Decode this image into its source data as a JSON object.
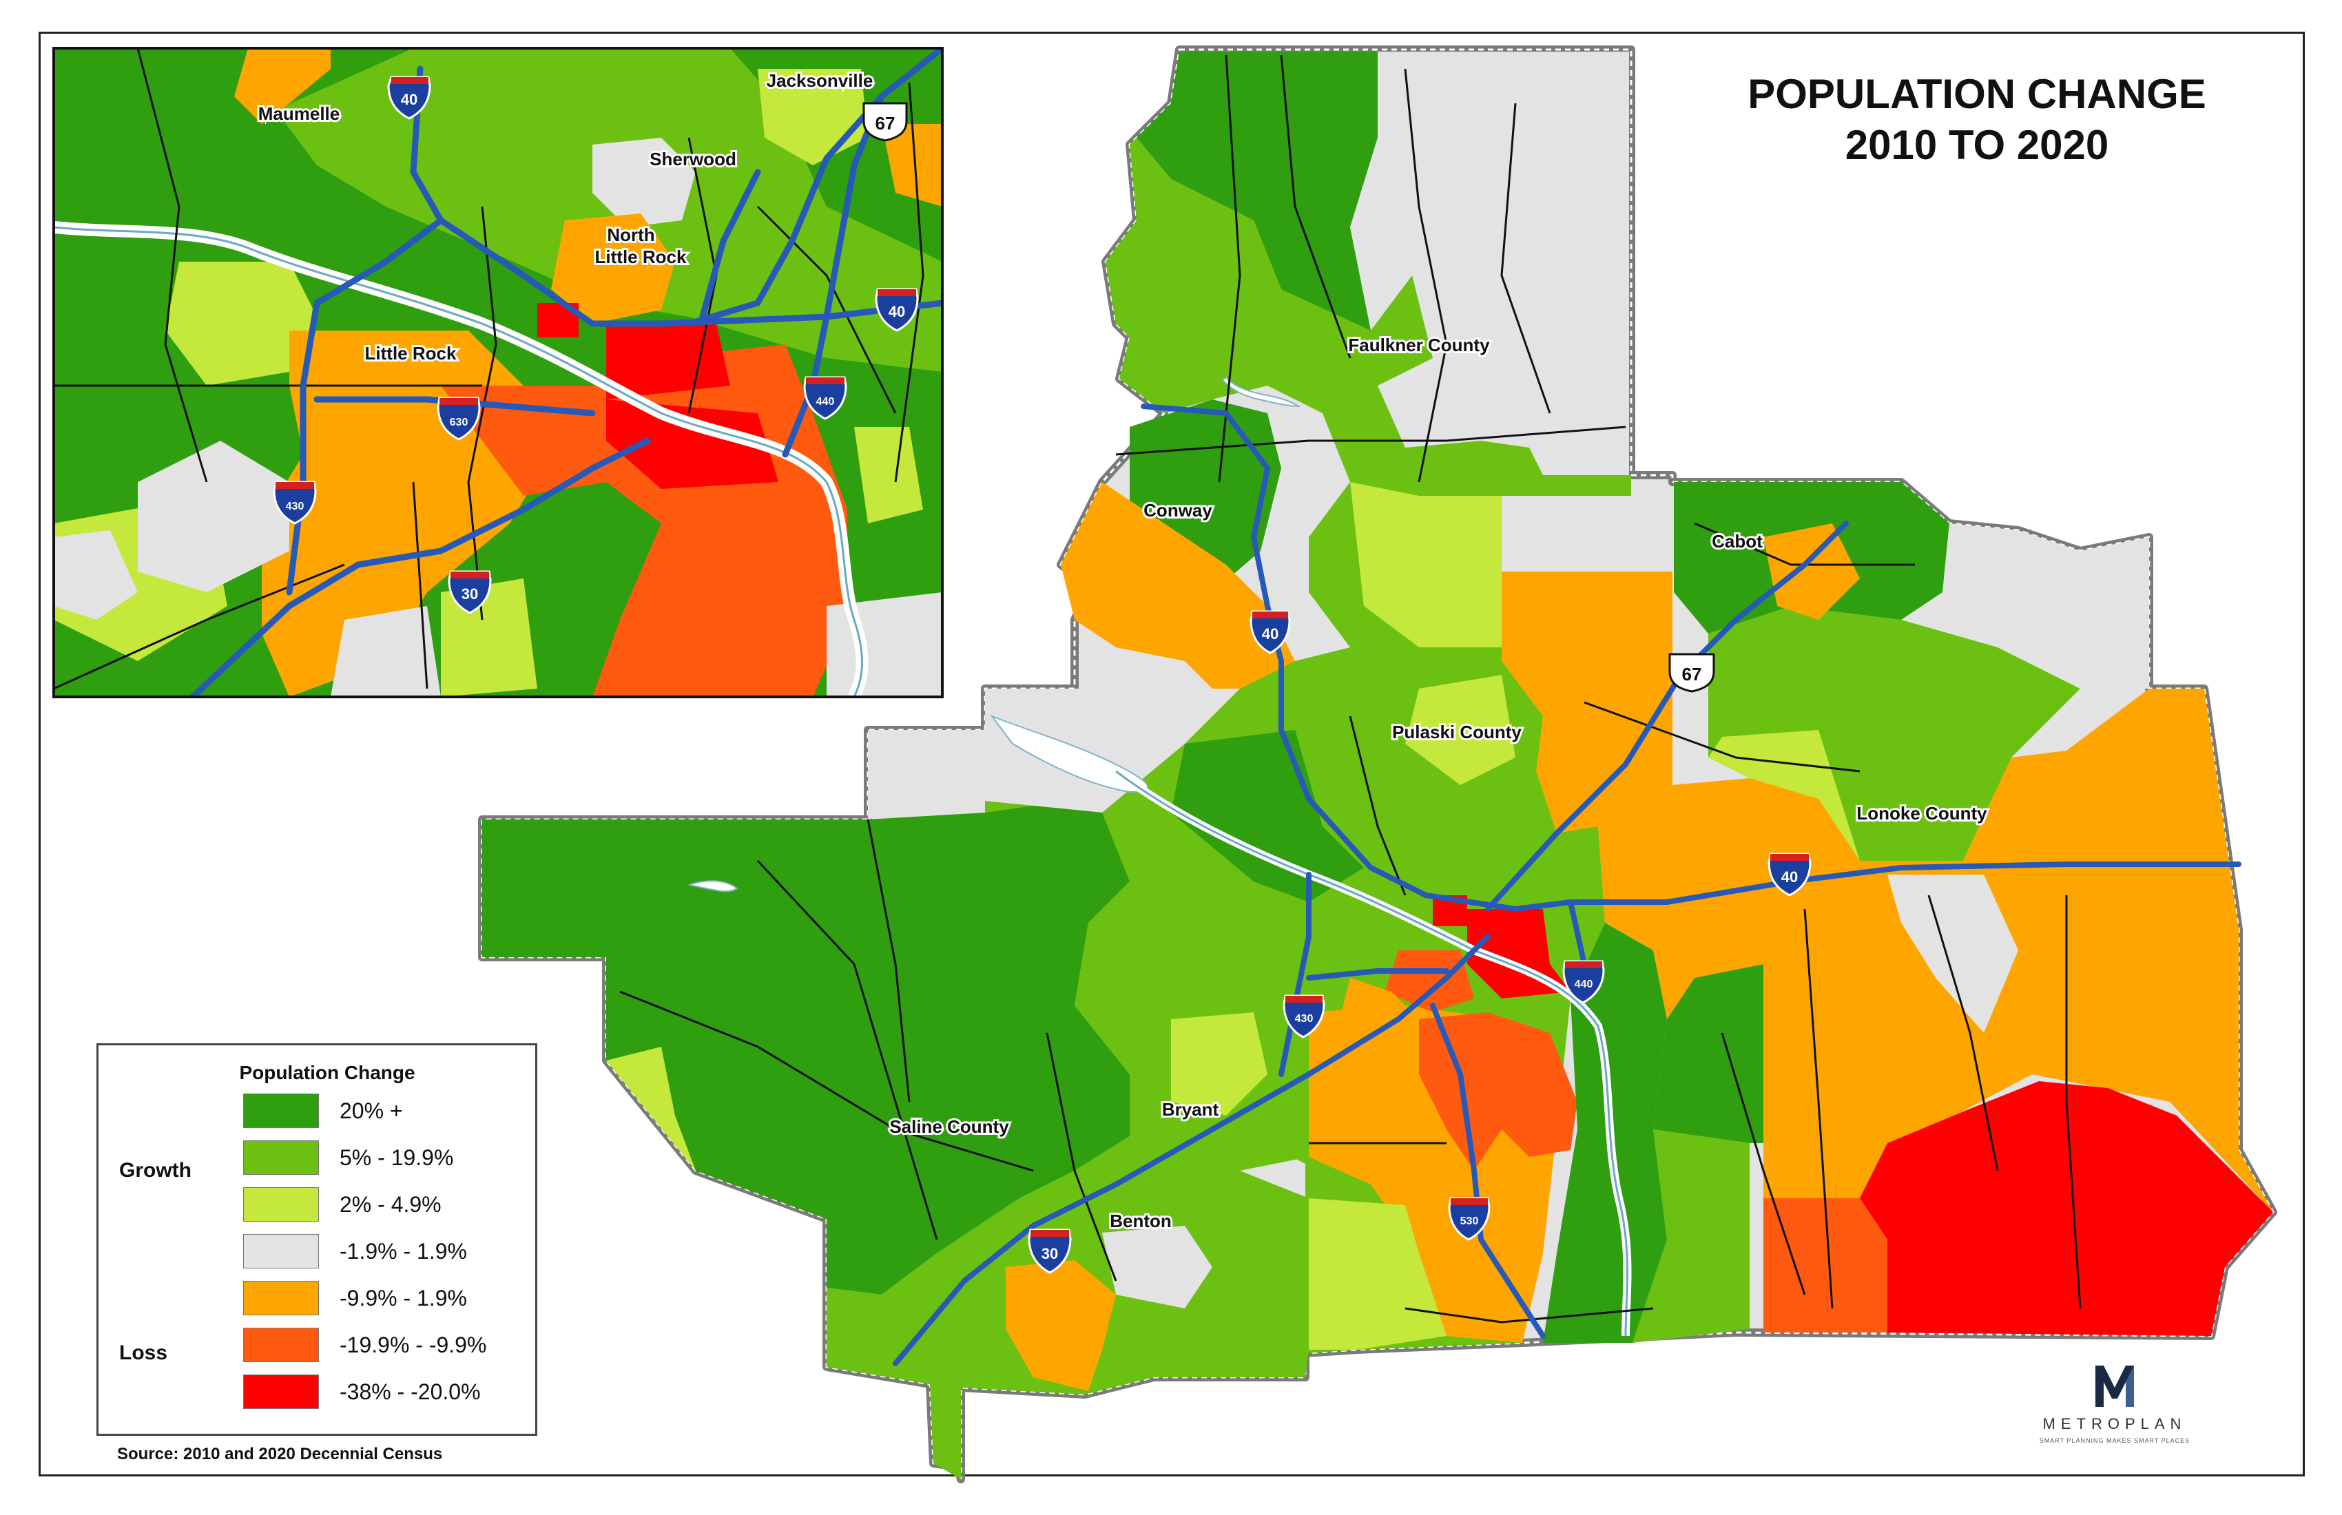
{
  "title": {
    "line1": "POPULATION CHANGE",
    "line2": "2010 TO 2020"
  },
  "colors": {
    "growth_20_plus": "#2f9e0f",
    "growth_5_19": "#6cc012",
    "growth_2_4": "#c4e83c",
    "stable": "#e3e3e3",
    "loss_small": "#ffa500",
    "loss_mid": "#ff5a0f",
    "loss_large": "#ff0000",
    "highway": "#2659b8",
    "water": "#d6ecf5"
  },
  "counties": {
    "faulkner": "Faulkner County",
    "pulaski": "Pulaski County",
    "lonoke": "Lonoke County",
    "saline": "Saline County"
  },
  "cities_main": {
    "conway": "Conway",
    "cabot": "Cabot",
    "bryant": "Bryant",
    "benton": "Benton"
  },
  "inset": {
    "maumelle": "Maumelle",
    "jacksonville": "Jacksonville",
    "sherwood": "Sherwood",
    "north_little_rock_1": "North",
    "north_little_rock_2": "Little Rock",
    "little_rock": "Little Rock"
  },
  "highways": {
    "i40": "40",
    "i30": "30",
    "i430": "430",
    "i440": "440",
    "i530": "530",
    "i630": "630",
    "us67": "67"
  },
  "legend": {
    "title": "Population Change",
    "growth_label": "Growth",
    "loss_label": "Loss",
    "items": [
      {
        "label": "20% +",
        "color": "#2f9e0f"
      },
      {
        "label": "5% - 19.9%",
        "color": "#6cc012"
      },
      {
        "label": "2% - 4.9%",
        "color": "#c4e83c"
      },
      {
        "label": "-1.9% - 1.9%",
        "color": "#e3e3e3"
      },
      {
        "label": "-9.9% - 1.9%",
        "color": "#ffa500"
      },
      {
        "label": "-19.9% - -9.9%",
        "color": "#ff5a0f"
      },
      {
        "label": "-38% - -20.0%",
        "color": "#ff0000"
      }
    ]
  },
  "source": "Source: 2010 and 2020 Decennial Census",
  "logo": {
    "wordmark": "METROPLAN",
    "tagline": "SMART PLANNING MAKES SMART PLACES"
  }
}
